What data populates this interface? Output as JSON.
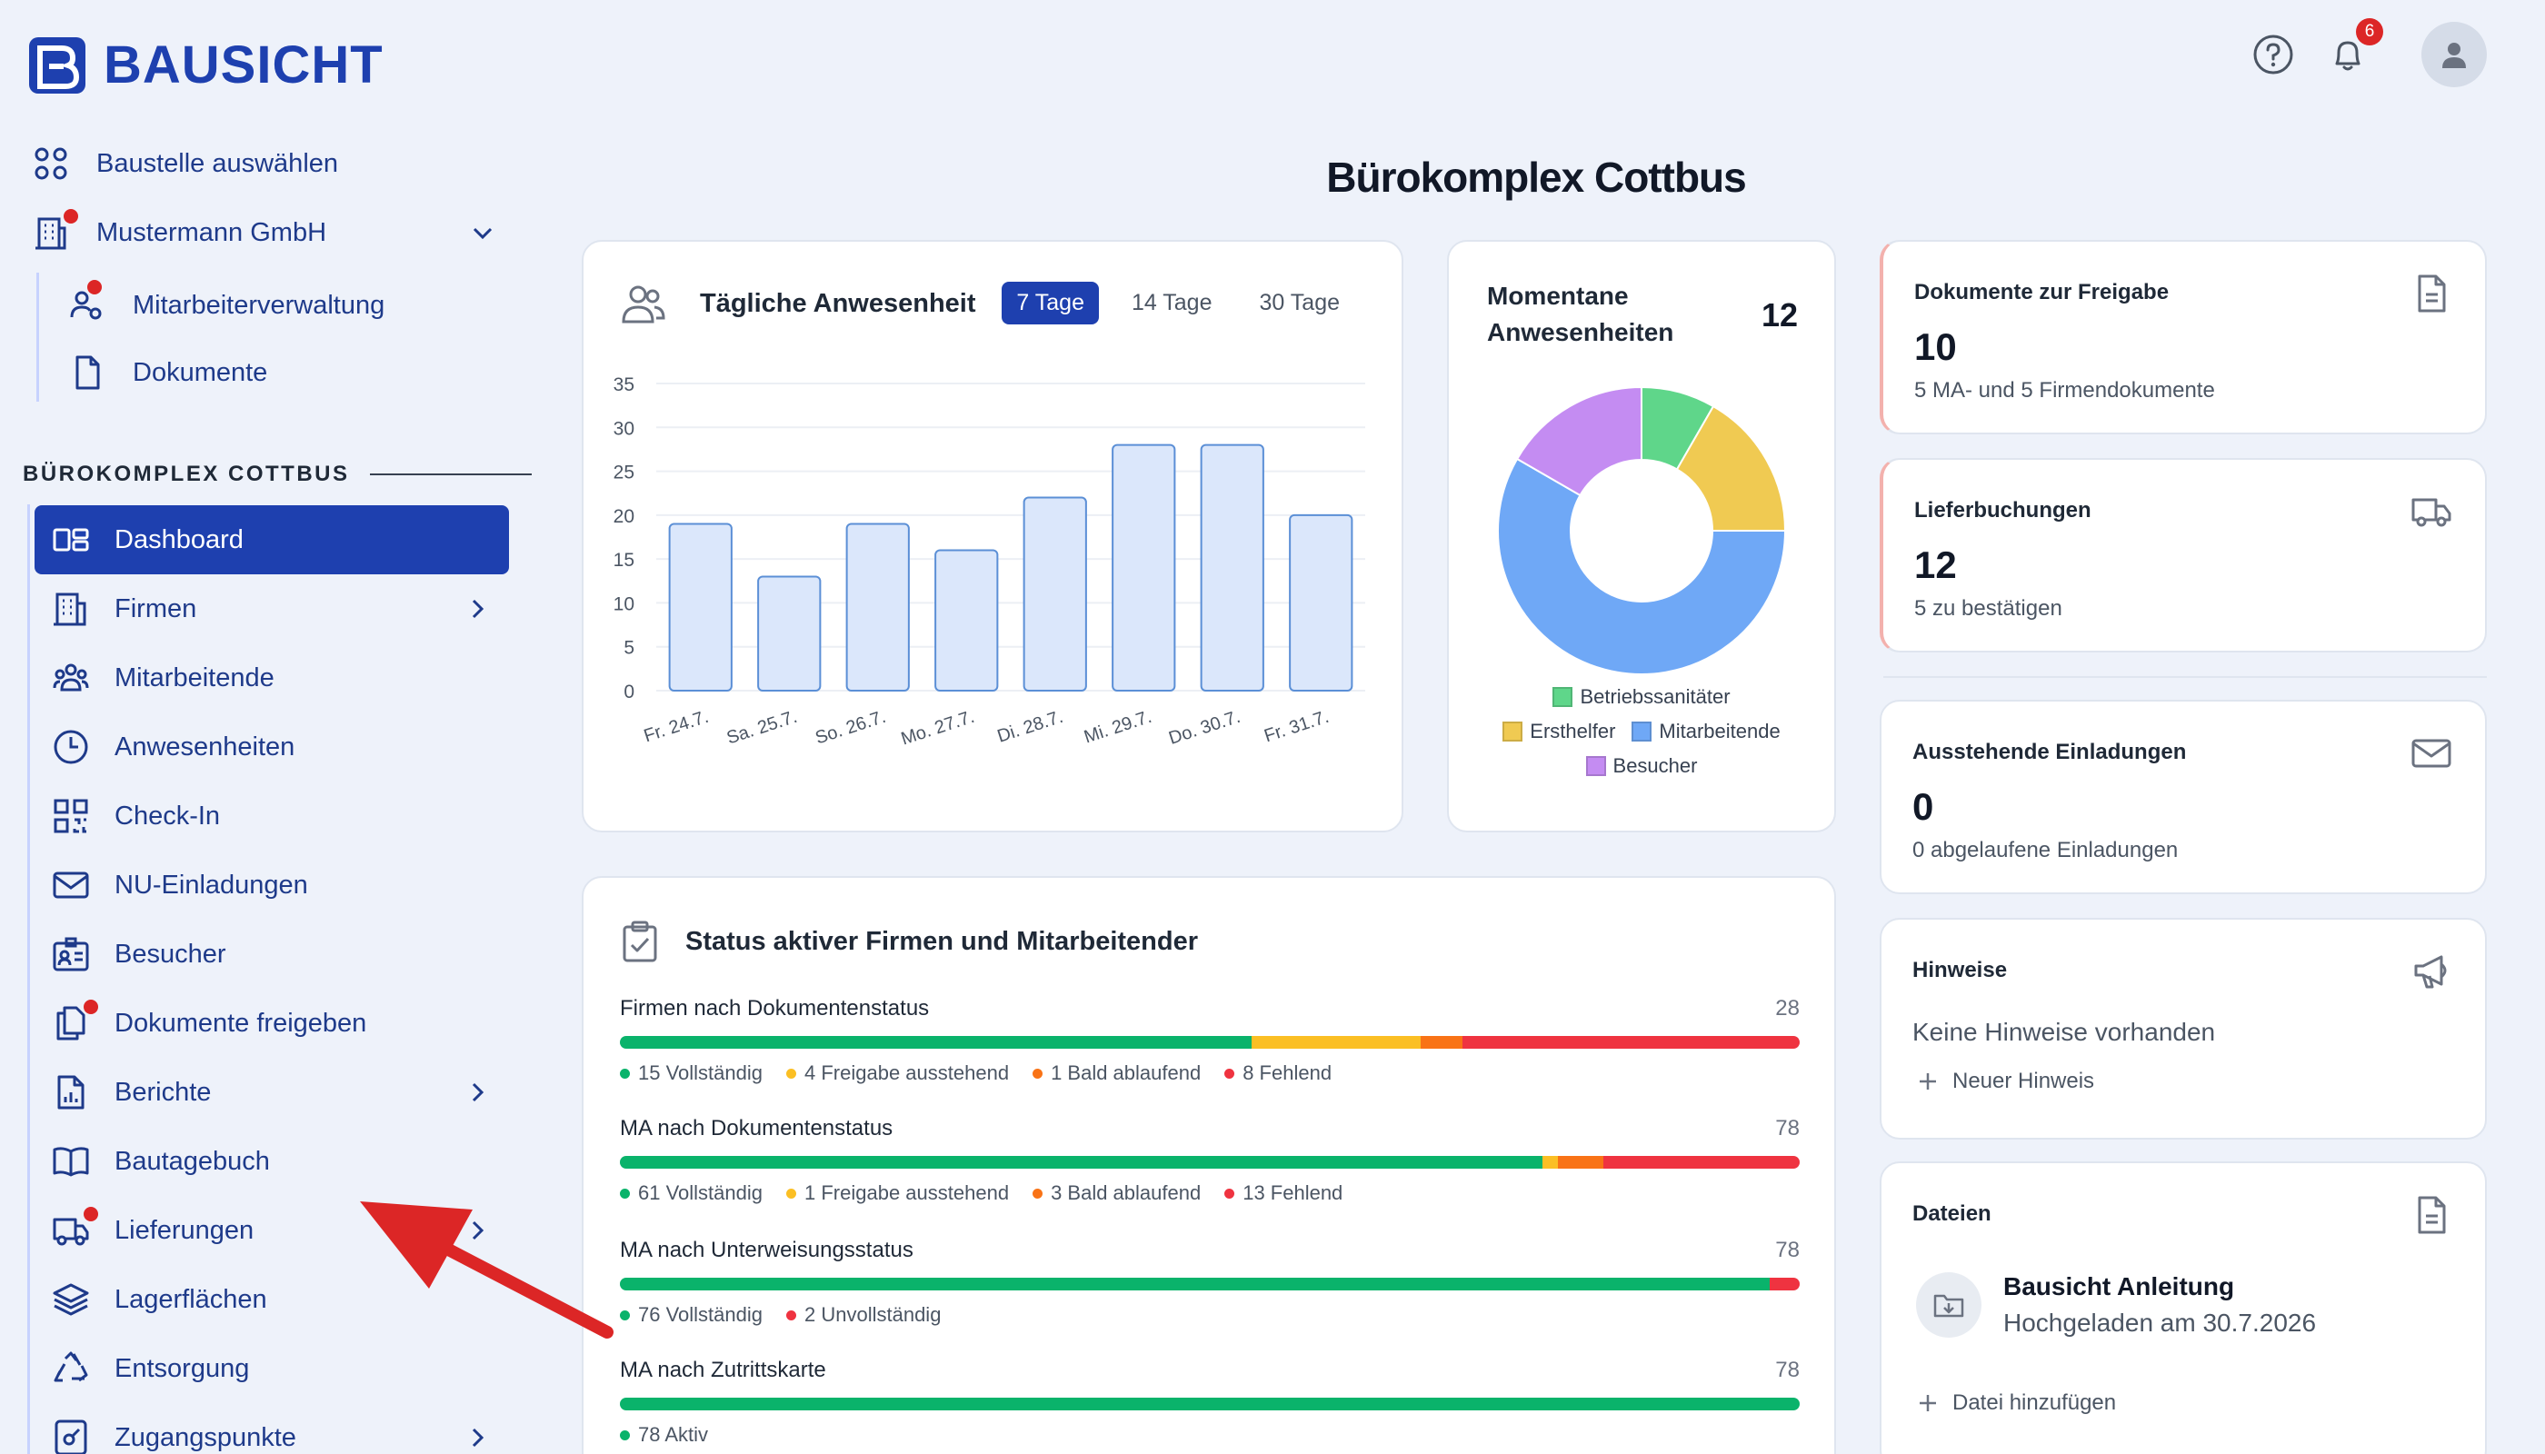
{
  "brand": {
    "name": "BAUSICHT",
    "color": "#1e40af"
  },
  "header": {
    "help_icon": "question-circle-icon",
    "notifications": {
      "icon": "bell-icon",
      "count": "6"
    },
    "avatar_icon": "user-icon"
  },
  "sidebar": {
    "select_site": "Baustelle auswählen",
    "company": "Mustermann GmbH",
    "company_sub": [
      {
        "label": "Mitarbeiterverwaltung"
      },
      {
        "label": "Dokumente"
      }
    ],
    "section_title": "BÜROKOMPLEX COTTBUS",
    "items": [
      {
        "label": "Dashboard",
        "icon": "dashboard-icon",
        "active": true
      },
      {
        "label": "Firmen",
        "icon": "building-icon",
        "chevron": true
      },
      {
        "label": "Mitarbeitende",
        "icon": "users-icon"
      },
      {
        "label": "Anwesenheiten",
        "icon": "clock-icon"
      },
      {
        "label": "Check-In",
        "icon": "qr-code-icon"
      },
      {
        "label": "NU-Einladungen",
        "icon": "envelope-icon"
      },
      {
        "label": "Besucher",
        "icon": "visitor-badge-icon"
      },
      {
        "label": "Dokumente freigeben",
        "icon": "documents-icon",
        "dot": true
      },
      {
        "label": "Berichte",
        "icon": "report-icon",
        "chevron": true
      },
      {
        "label": "Bautagebuch",
        "icon": "book-icon"
      },
      {
        "label": "Lieferungen",
        "icon": "truck-icon",
        "dot": true,
        "chevron": true
      },
      {
        "label": "Lagerflächen",
        "icon": "layers-icon"
      },
      {
        "label": "Entsorgung",
        "icon": "recycle-icon"
      },
      {
        "label": "Zugangspunkte",
        "icon": "access-point-icon",
        "chevron": true
      }
    ]
  },
  "page_title": "Bürokomplex Cottbus",
  "attendance": {
    "title": "Tägliche Anwesenheit",
    "ranges": [
      "7 Tage",
      "14 Tage",
      "30 Tage"
    ],
    "active_range": "7 Tage"
  },
  "chart_data": [
    {
      "type": "bar",
      "title": "Tägliche Anwesenheit",
      "categories": [
        "Fr. 24.7.",
        "Sa. 25.7.",
        "So. 26.7.",
        "Mo. 27.7.",
        "Di. 28.7.",
        "Mi. 29.7.",
        "Do. 30.7.",
        "Fr. 31.7."
      ],
      "values": [
        19,
        13,
        19,
        16,
        22,
        28,
        28,
        20
      ],
      "yticks": [
        0,
        5,
        10,
        15,
        20,
        25,
        30,
        35
      ],
      "ylim": [
        0,
        35
      ],
      "grid": true,
      "bar_fill": "#dbe7fb",
      "bar_stroke": "#5b8fd6"
    },
    {
      "type": "pie",
      "title": "Momentane Anwesenheiten",
      "total": "12",
      "series": [
        {
          "name": "Betriebssanitäter",
          "value": 1,
          "color": "#5fd68a"
        },
        {
          "name": "Ersthelfer",
          "value": 2,
          "color": "#f0ca52"
        },
        {
          "name": "Mitarbeitende",
          "value": 7,
          "color": "#6fa8f6"
        },
        {
          "name": "Besucher",
          "value": 2,
          "color": "#c48cf2"
        }
      ],
      "legend": "bottom"
    }
  ],
  "stats": [
    {
      "label": "Dokumente zur Freigabe",
      "value": "10",
      "sub": "5 MA- und 5 Firmendokumente",
      "icon": "document-icon",
      "alert": true
    },
    {
      "label": "Lieferbuchungen",
      "value": "12",
      "sub": "5 zu bestätigen",
      "icon": "truck-icon",
      "alert": true
    },
    {
      "label": "Ausstehende Einladungen",
      "value": "0",
      "sub": "0 abgelaufene Einladungen",
      "icon": "envelope-icon",
      "alert": false
    }
  ],
  "status": {
    "title": "Status aktiver Firmen und Mitarbeitender",
    "colors": {
      "complete": "#0ab36b",
      "pending": "#fbbf24",
      "expiring": "#f97316",
      "missing": "#ef3340"
    },
    "rows": [
      {
        "label": "Firmen nach Dokumentenstatus",
        "total": "28",
        "segments": [
          {
            "value": 15,
            "key": "complete",
            "text": "15 Vollständig"
          },
          {
            "value": 4,
            "key": "pending",
            "text": "4 Freigabe ausstehend"
          },
          {
            "value": 1,
            "key": "expiring",
            "text": "1 Bald ablaufend"
          },
          {
            "value": 8,
            "key": "missing",
            "text": "8 Fehlend"
          }
        ]
      },
      {
        "label": "MA nach Dokumentenstatus",
        "total": "78",
        "segments": [
          {
            "value": 61,
            "key": "complete",
            "text": "61 Vollständig"
          },
          {
            "value": 1,
            "key": "pending",
            "text": "1 Freigabe ausstehend"
          },
          {
            "value": 3,
            "key": "expiring",
            "text": "3 Bald ablaufend"
          },
          {
            "value": 13,
            "key": "missing",
            "text": "13 Fehlend"
          }
        ]
      },
      {
        "label": "MA nach Unterweisungsstatus",
        "total": "78",
        "segments": [
          {
            "value": 76,
            "key": "complete",
            "text": "76 Vollständig"
          },
          {
            "value": 2,
            "key": "missing",
            "text": "2 Unvollständig"
          }
        ]
      },
      {
        "label": "MA nach Zutrittskarte",
        "total": "78",
        "segments": [
          {
            "value": 78,
            "key": "complete",
            "text": "78 Aktiv"
          }
        ]
      }
    ]
  },
  "hints": {
    "title": "Hinweise",
    "empty": "Keine Hinweise vorhanden",
    "add": "Neuer Hinweis",
    "icon": "megaphone-icon"
  },
  "files": {
    "title": "Dateien",
    "items": [
      {
        "name": "Bausicht Anleitung",
        "date": "Hochgeladen am 30.7.2026"
      }
    ],
    "add": "Datei hinzufügen",
    "icon": "file-icon"
  },
  "annotation": {
    "arrow_color": "#dc2626"
  }
}
